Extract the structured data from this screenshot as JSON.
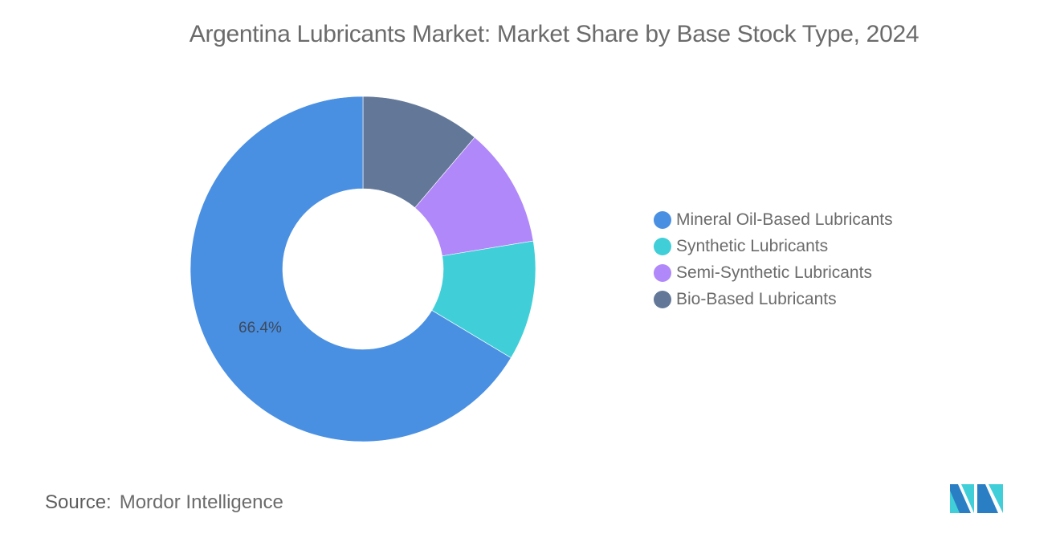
{
  "title": "Argentina Lubricants Market: Market Share by Base Stock Type, 2024",
  "source": {
    "label": "Source:",
    "value": "Mordor Intelligence"
  },
  "legend": [
    {
      "label": "Mineral Oil-Based Lubricants",
      "color": "#4a90e2"
    },
    {
      "label": "Synthetic Lubricants",
      "color": "#40cfd8"
    },
    {
      "label": "Semi-Synthetic Lubricants",
      "color": "#b088f9"
    },
    {
      "label": "Bio-Based Lubricants",
      "color": "#637899"
    }
  ],
  "chart_data": {
    "type": "pie",
    "subtype": "donut",
    "title": "Argentina Lubricants Market: Market Share by Base Stock Type, 2024",
    "categories": [
      "Mineral Oil-Based Lubricants",
      "Synthetic Lubricants",
      "Semi-Synthetic Lubricants",
      "Bio-Based Lubricants"
    ],
    "values": [
      66.4,
      11.2,
      11.2,
      11.2
    ],
    "unit": "%",
    "colors": [
      "#4a90e2",
      "#40cfd8",
      "#b088f9",
      "#637899"
    ],
    "data_labels": [
      {
        "category": "Mineral Oil-Based Lubricants",
        "text": "66.4%"
      }
    ],
    "legend_position": "right"
  }
}
